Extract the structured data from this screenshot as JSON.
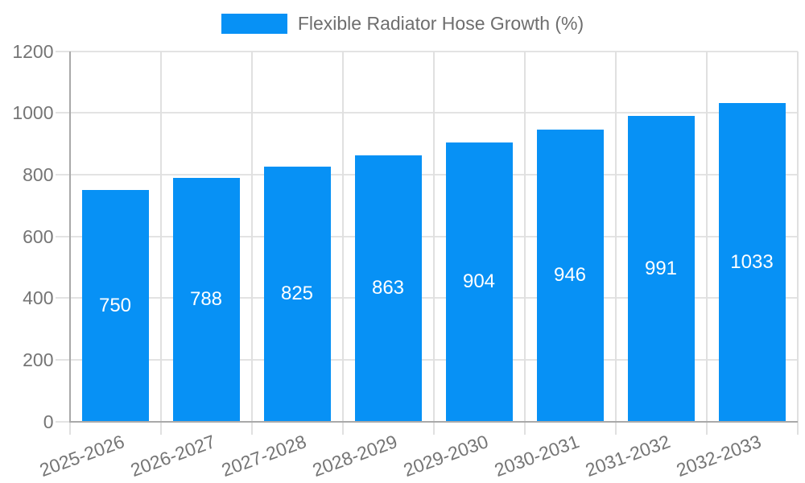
{
  "chart_data": {
    "type": "bar",
    "title": "Flexible Radiator Hose Growth (%)",
    "categories": [
      "2025-2026",
      "2026-2027",
      "2027-2028",
      "2028-2029",
      "2029-2030",
      "2030-2031",
      "2031-2032",
      "2032-2033"
    ],
    "values": [
      750,
      788,
      825,
      863,
      904,
      946,
      991,
      1033
    ],
    "yticks": [
      0,
      200,
      400,
      600,
      800,
      1000,
      1200
    ],
    "ylim": [
      0,
      1200
    ],
    "xlabel": "",
    "ylabel": "",
    "grid": "on",
    "legend_position": "top",
    "bar_color": "#0791f5",
    "value_label_color": "#ffffff",
    "axis_text_color": "#757575",
    "legend_text_color": "#6e6e6e"
  }
}
